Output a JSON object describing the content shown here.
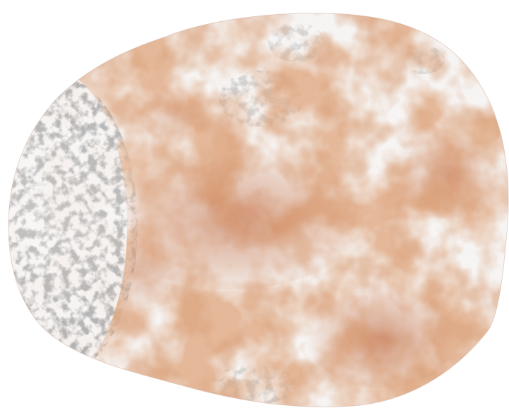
{
  "image": {
    "subject": "microscopy-tissue-section",
    "background_color": "#ffffff",
    "stain_color": "#c8693a",
    "stain_dark_color": "#b8572c",
    "nuclear_color": "#6f6f6f",
    "boundary_color": "#d9b9a8"
  }
}
